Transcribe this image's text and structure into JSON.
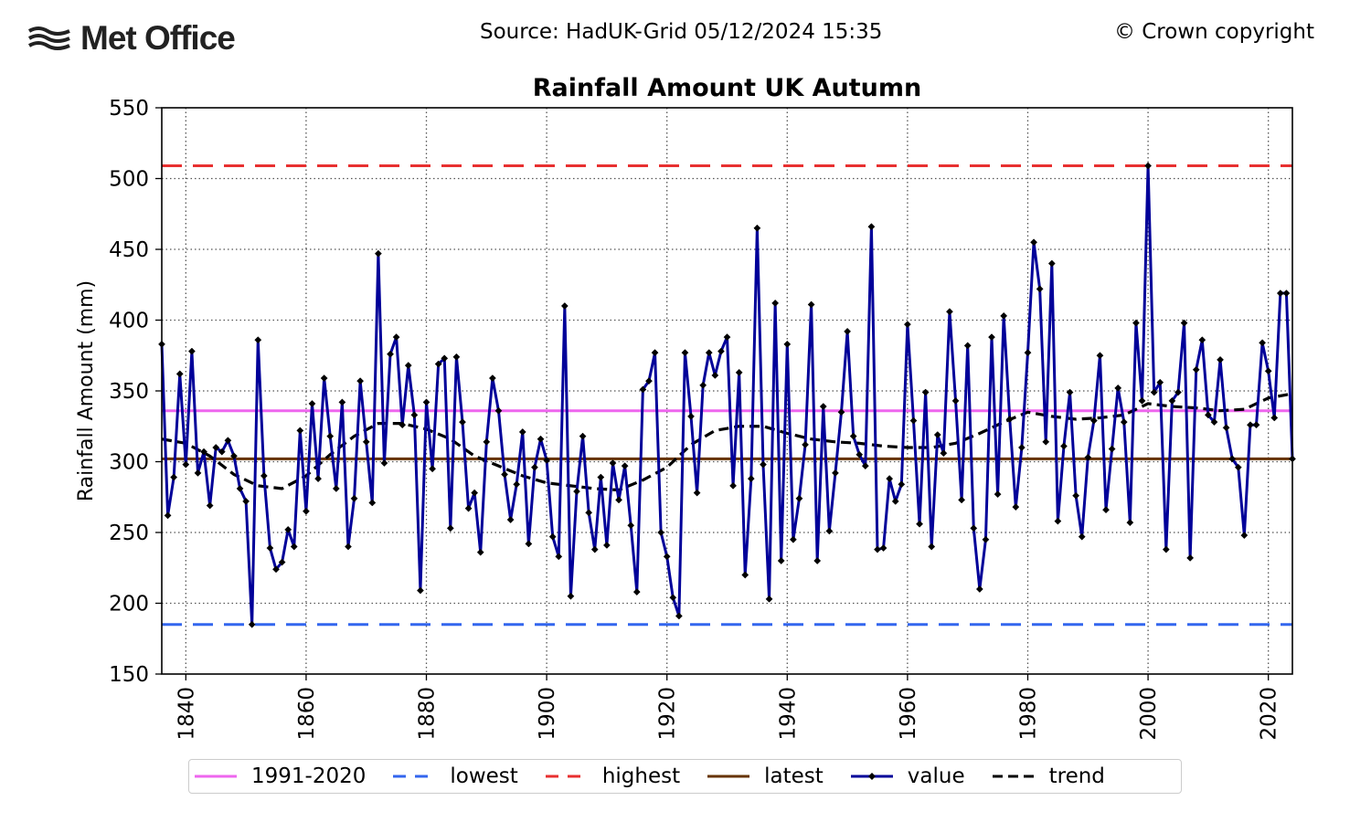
{
  "header": {
    "logo_text": "Met Office",
    "source": "Source: HadUK-Grid 05/12/2024 15:35",
    "copyright": "© Crown copyright"
  },
  "chart_data": {
    "type": "line",
    "title": "Rainfall Amount UK Autumn",
    "xlabel": "",
    "ylabel": "Rainfall Amount (mm)",
    "xlim": [
      1836,
      2024
    ],
    "ylim": [
      150,
      550
    ],
    "x_ticks": [
      1840,
      1860,
      1880,
      1900,
      1920,
      1940,
      1960,
      1980,
      2000,
      2020
    ],
    "y_ticks": [
      150,
      200,
      250,
      300,
      350,
      400,
      450,
      500,
      550
    ],
    "grid": true,
    "legend_position": "bottom",
    "reference_lines": [
      {
        "name": "1991-2020",
        "value": 336,
        "color": "#ee66ee",
        "style": "solid"
      },
      {
        "name": "lowest",
        "value": 185,
        "color": "#3366ee",
        "style": "dashed"
      },
      {
        "name": "highest",
        "value": 509,
        "color": "#e83030",
        "style": "dashed"
      },
      {
        "name": "latest",
        "value": 302,
        "color": "#663300",
        "style": "solid"
      }
    ],
    "series": [
      {
        "name": "value",
        "color": "#000099",
        "marker": "diamond",
        "start_year": 1836,
        "values": [
          383,
          262,
          289,
          362,
          298,
          378,
          292,
          307,
          269,
          310,
          307,
          315,
          304,
          281,
          272,
          185,
          386,
          290,
          239,
          224,
          229,
          252,
          240,
          322,
          265,
          341,
          288,
          359,
          318,
          281,
          342,
          240,
          274,
          357,
          314,
          271,
          447,
          299,
          376,
          388,
          326,
          368,
          333,
          209,
          342,
          295,
          369,
          373,
          253,
          374,
          328,
          267,
          278,
          236,
          314,
          359,
          336,
          291,
          259,
          284,
          321,
          242,
          296,
          316,
          301,
          247,
          233,
          410,
          205,
          279,
          318,
          264,
          238,
          289,
          241,
          299,
          273,
          297,
          255,
          208,
          351,
          357,
          377,
          250,
          233,
          204,
          191,
          377,
          332,
          278,
          354,
          377,
          361,
          378,
          388,
          283,
          363,
          220,
          288,
          465,
          298,
          203,
          412,
          230,
          383,
          245,
          274,
          312,
          411,
          230,
          339,
          251,
          292,
          335,
          392,
          318,
          305,
          297,
          466,
          238,
          239,
          288,
          272,
          284,
          397,
          329,
          256,
          349,
          240,
          319,
          306,
          406,
          343,
          273,
          382,
          253,
          210,
          245,
          388,
          277,
          403,
          330,
          268,
          310,
          377,
          455,
          422,
          314,
          440,
          258,
          311,
          349,
          276,
          247,
          303,
          329,
          375,
          266,
          309,
          352,
          328,
          257,
          398,
          343,
          509,
          349,
          356,
          238,
          343,
          349,
          398,
          232,
          365,
          386,
          333,
          328,
          372,
          324,
          302,
          296,
          248,
          326,
          326,
          384,
          364,
          331,
          419,
          419,
          302
        ]
      },
      {
        "name": "trend",
        "color": "#000000",
        "style": "dashed",
        "x": [
          1836,
          1840,
          1844,
          1848,
          1852,
          1856,
          1860,
          1864,
          1868,
          1872,
          1876,
          1880,
          1884,
          1888,
          1892,
          1896,
          1900,
          1904,
          1908,
          1912,
          1916,
          1920,
          1924,
          1928,
          1932,
          1936,
          1940,
          1944,
          1948,
          1952,
          1956,
          1960,
          1964,
          1968,
          1972,
          1976,
          1980,
          1984,
          1988,
          1992,
          1996,
          2000,
          2004,
          2008,
          2012,
          2016,
          2020,
          2024
        ],
        "values": [
          316,
          313,
          304,
          291,
          283,
          281,
          290,
          305,
          318,
          327,
          327,
          323,
          316,
          304,
          297,
          290,
          285,
          283,
          281,
          280,
          287,
          296,
          312,
          322,
          325,
          325,
          320,
          316,
          314,
          313,
          311,
          310,
          310,
          313,
          320,
          328,
          335,
          332,
          330,
          331,
          333,
          341,
          339,
          338,
          336,
          337,
          345,
          348
        ]
      }
    ]
  },
  "legend": {
    "items": [
      {
        "label": "1991-2020",
        "color": "#ee66ee",
        "style": "solid"
      },
      {
        "label": "lowest",
        "color": "#3366ee",
        "style": "dashed"
      },
      {
        "label": "highest",
        "color": "#e83030",
        "style": "dashed"
      },
      {
        "label": "latest",
        "color": "#663300",
        "style": "solid"
      },
      {
        "label": "value",
        "color": "#000099",
        "style": "marker"
      },
      {
        "label": "trend",
        "color": "#000000",
        "style": "dashed"
      }
    ]
  }
}
